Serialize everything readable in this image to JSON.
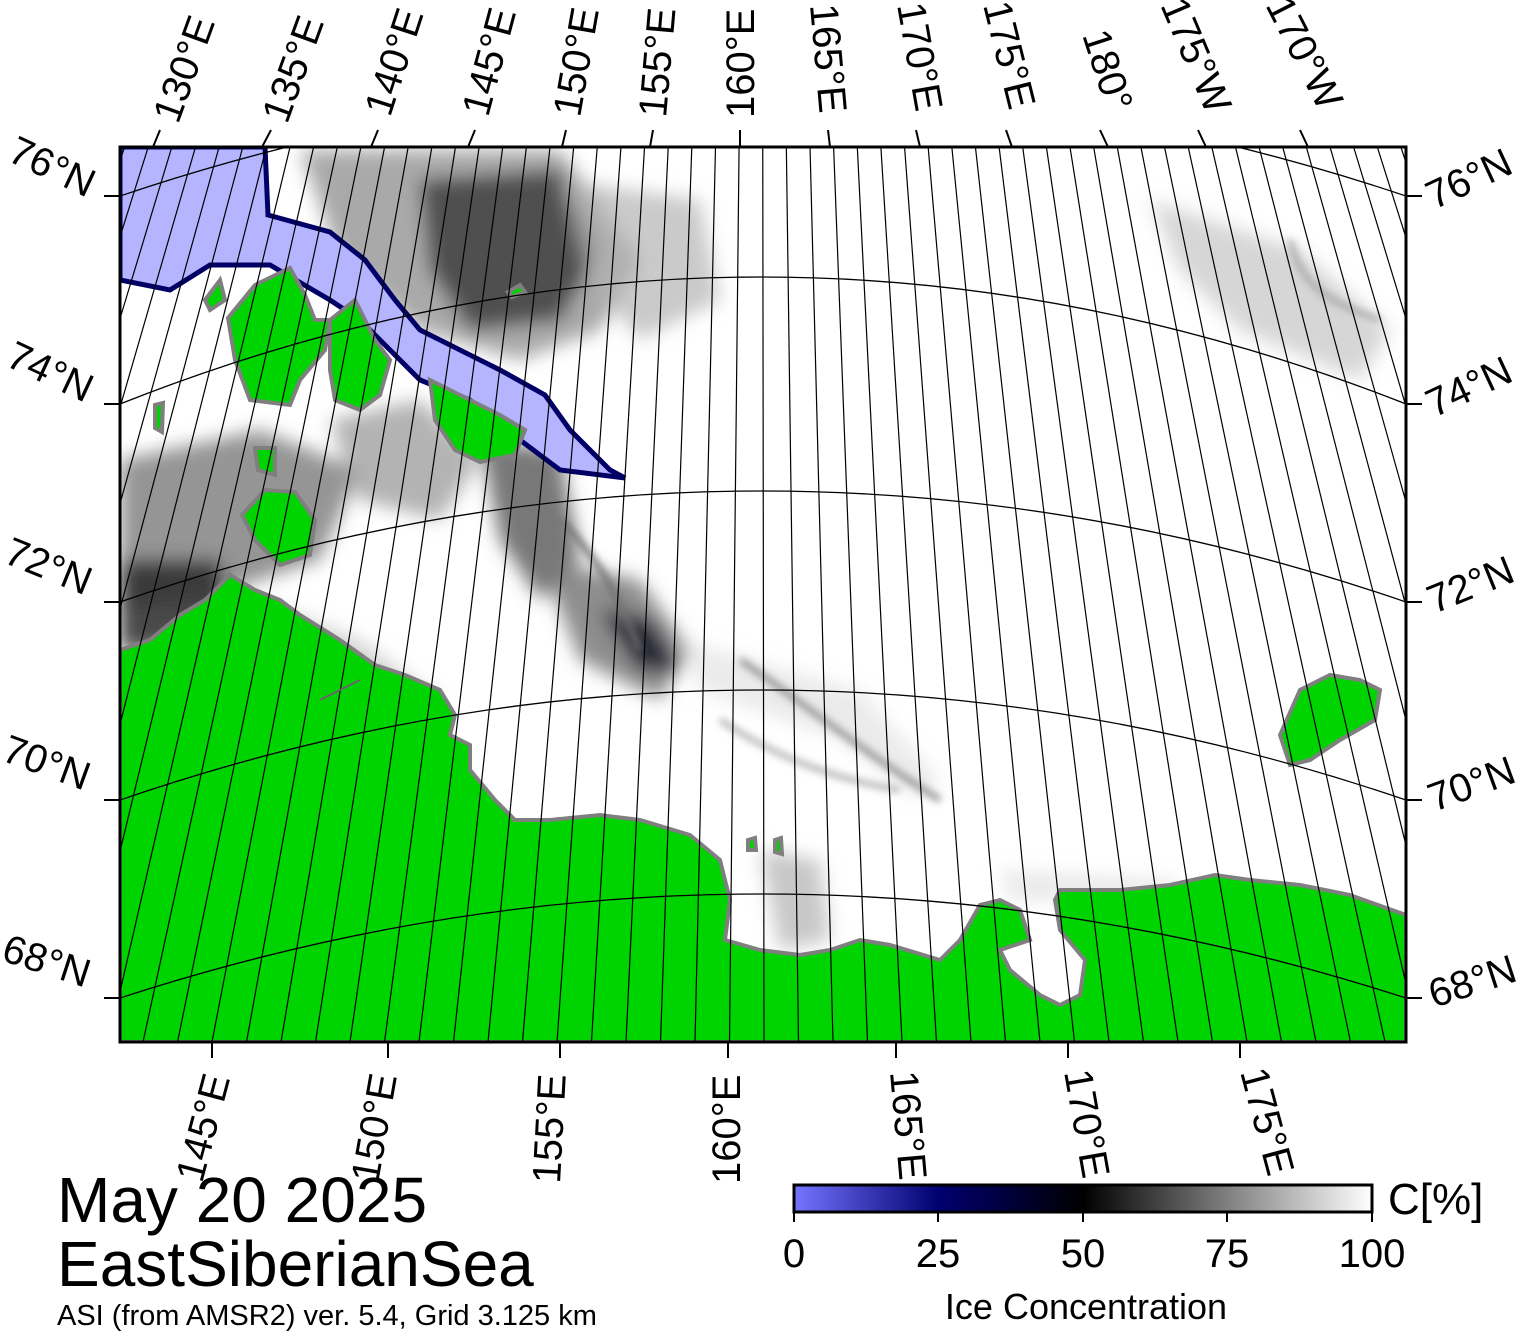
{
  "map": {
    "date": "May 20 2025",
    "region": "EastSiberianSea",
    "source": "ASI (from AMSR2) ver. 5.4,  Grid 3.125 km",
    "top_lon_labels": [
      "130°E",
      "135°E",
      "140°E",
      "145°E",
      "150°E",
      "155°E",
      "160°E",
      "165°E",
      "170°E",
      "175°E",
      "180°",
      "175°W",
      "170°W"
    ],
    "bottom_lon_labels": [
      "145°E",
      "150°E",
      "155°E",
      "160°E",
      "165°E",
      "170°E",
      "175°E"
    ],
    "left_lat_labels": [
      "76°N",
      "74°N",
      "72°N",
      "70°N",
      "68°N"
    ],
    "right_lat_labels": [
      "76°N",
      "74°N",
      "72°N",
      "70°N",
      "68°N"
    ],
    "colors": {
      "land": "#00d400",
      "land_edge": "#808080",
      "open_water": "#ffffff",
      "low_concentration": "#b0b0ff",
      "mid_concentration": "#000060",
      "ice_dark": "#000000",
      "ice_light": "#f4f4f4"
    }
  },
  "colorbar": {
    "unit": "C[%]",
    "title": "Ice Concentration",
    "ticks": [
      "0",
      "25",
      "50",
      "75",
      "100"
    ],
    "gradient": [
      "#7070ff",
      "#000066",
      "#000000",
      "#ffffff"
    ]
  }
}
